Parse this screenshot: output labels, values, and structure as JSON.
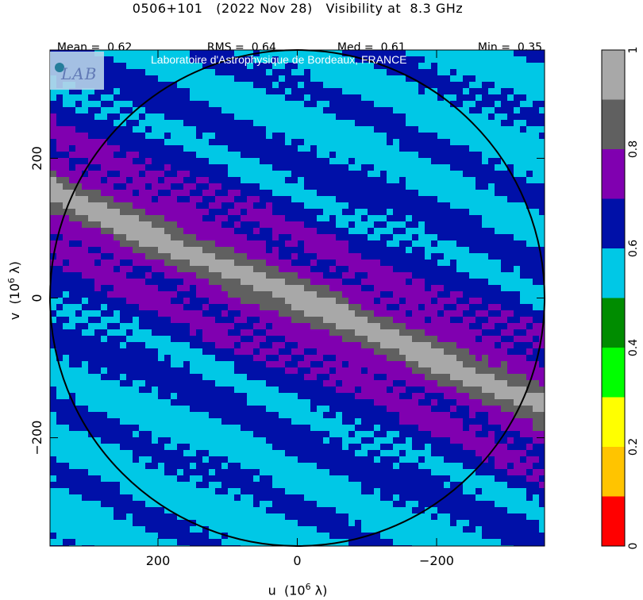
{
  "title": "0506+101   (2022 Nov 28)   Visibility at  8.3 GHz",
  "stats": [
    {
      "label": "Mean =",
      "value": "0.62"
    },
    {
      "label": "RMS =",
      "value": "0.64"
    },
    {
      "label": "Med =",
      "value": "0.61"
    },
    {
      "label": "Min =",
      "value": "0.35"
    }
  ],
  "watermark": {
    "logo_text": "LAB",
    "caption": "Laboratoire d'Astrophysique de Bordeaux, FRANCE"
  },
  "chart_data": {
    "type": "heatmap",
    "title": "0506+101   (2022 Nov 28)   Visibility at  8.3 GHz",
    "xlabel": "u  (10^6 λ)",
    "ylabel": "v  (10^6 λ)",
    "xlim": [
      355,
      -355
    ],
    "ylim": [
      -355,
      355
    ],
    "xticks": [
      200,
      0,
      -200
    ],
    "xtick_labels": [
      "200",
      "0",
      "−200"
    ],
    "yticks": [
      200,
      0,
      -200
    ],
    "ytick_labels": [
      "200",
      "0",
      "−200"
    ],
    "circle_radius": 355,
    "band_orientation": "diagonal, running from upper-left to lower-right",
    "colorbar": {
      "range": [
        0,
        1
      ],
      "ticks": [
        0,
        0.2,
        0.4,
        0.6,
        0.8,
        1
      ],
      "tick_labels": [
        "0",
        "0.2",
        "0.4",
        "0.6",
        "0.8",
        "1"
      ],
      "levels": [
        {
          "from": 0.0,
          "to": 0.1,
          "color": "#ff0000"
        },
        {
          "from": 0.1,
          "to": 0.2,
          "color": "#ffc400"
        },
        {
          "from": 0.2,
          "to": 0.3,
          "color": "#ffff00"
        },
        {
          "from": 0.3,
          "to": 0.4,
          "color": "#00ff00"
        },
        {
          "from": 0.4,
          "to": 0.5,
          "color": "#008c00"
        },
        {
          "from": 0.5,
          "to": 0.6,
          "color": "#00c8e6"
        },
        {
          "from": 0.6,
          "to": 0.7,
          "color": "#0010a8"
        },
        {
          "from": 0.7,
          "to": 0.8,
          "color": "#8000b0"
        },
        {
          "from": 0.8,
          "to": 0.9,
          "color": "#606060"
        },
        {
          "from": 0.9,
          "to": 1.0,
          "color": "#a8a8a8"
        }
      ]
    }
  }
}
